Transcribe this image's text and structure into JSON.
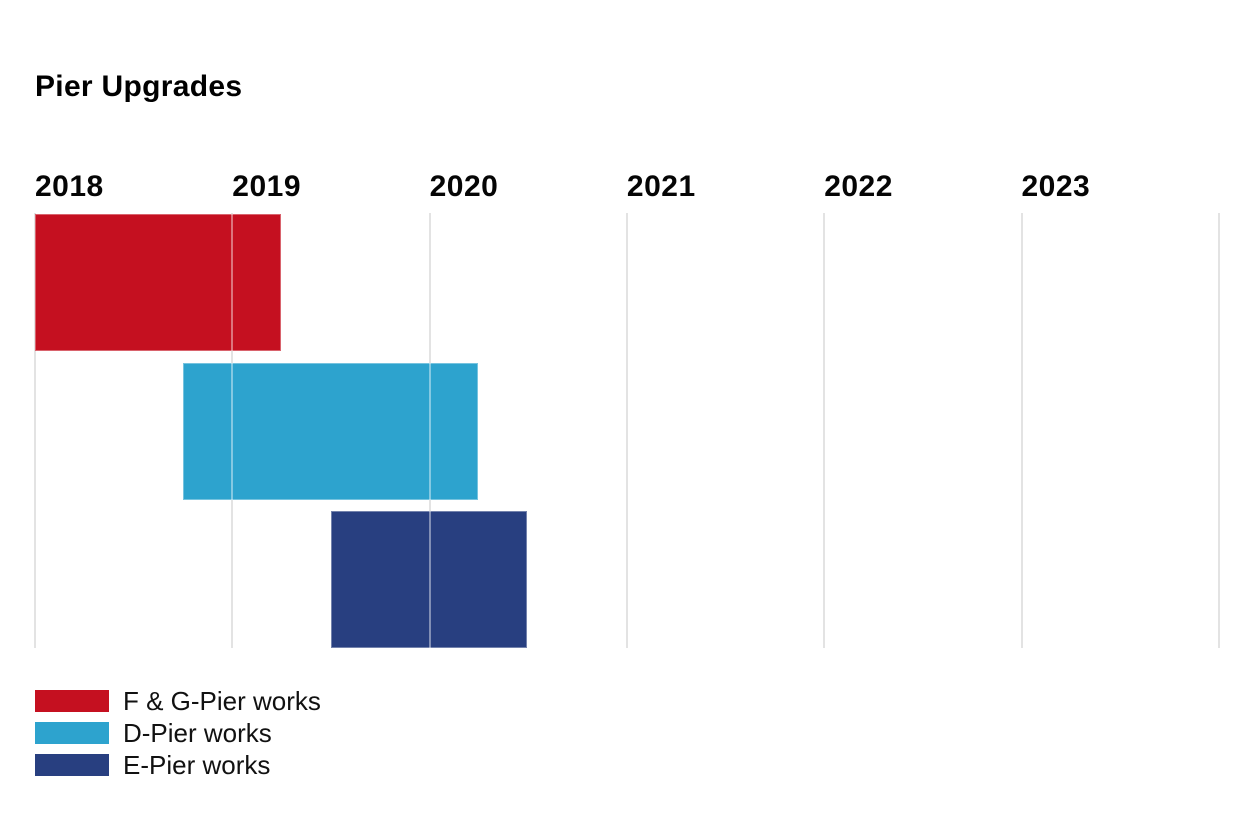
{
  "page": {
    "background": "#FFFFFF"
  },
  "chart_data": {
    "type": "bar",
    "subtype": "gantt-timeline",
    "title": "Pier Upgrades",
    "x_axis": {
      "tick_labels": [
        "2018",
        "2019",
        "2020",
        "2021",
        "2022",
        "2023"
      ],
      "tick_years": [
        2018,
        2019,
        2020,
        2021,
        2022,
        2023
      ],
      "domain": [
        2018,
        2024.01
      ],
      "gridline_years": [
        2018,
        2019,
        2020,
        2021,
        2022,
        2023,
        2024
      ],
      "ticks_position": "top",
      "grid": "vertical-only"
    },
    "series": [
      {
        "name": "F & G-Pier works",
        "start_year": 2018.0,
        "end_year": 2019.25,
        "color": "#C51020",
        "row": 0
      },
      {
        "name": "D-Pier works",
        "start_year": 2018.75,
        "end_year": 2020.25,
        "color": "#2DA3CE",
        "row": 1
      },
      {
        "name": "E-Pier works",
        "start_year": 2019.5,
        "end_year": 2020.5,
        "color": "#283F80",
        "row": 2
      }
    ],
    "legend": {
      "position": "bottom-left",
      "items": [
        {
          "label": "F & G-Pier works",
          "color": "#C51020"
        },
        {
          "label": "D-Pier works",
          "color": "#2DA3CE"
        },
        {
          "label": "E-Pier works",
          "color": "#283F80"
        }
      ]
    },
    "colors": {
      "gridline": "#E3E3E3",
      "gridline_over_bar": "rgba(255,255,255,0.42)",
      "title_text": "#000000",
      "tick_text": "#050505",
      "legend_text": "#111111",
      "background": "#FFFFFF"
    }
  }
}
